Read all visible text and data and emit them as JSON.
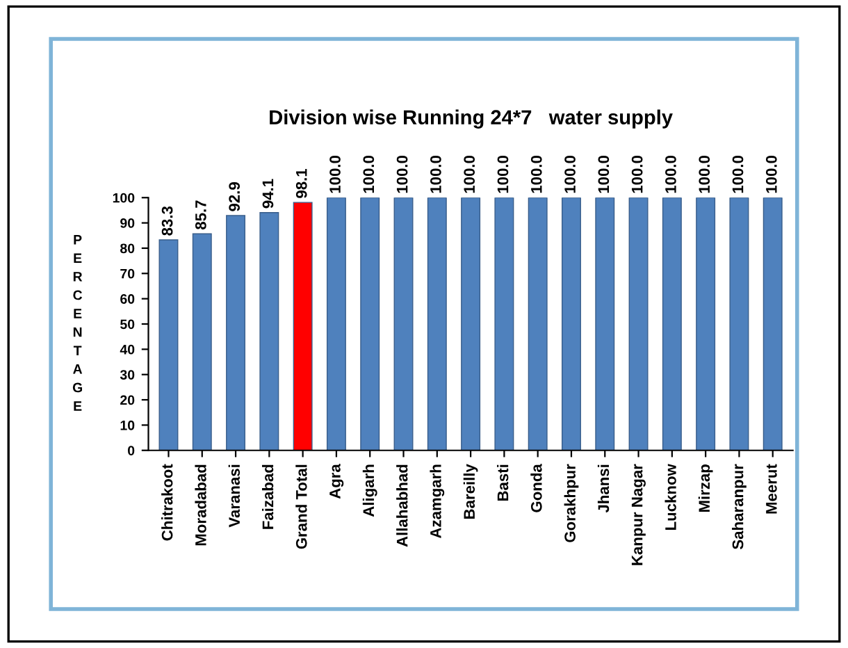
{
  "chart_data": {
    "type": "bar",
    "title": "Division wise Running 24*7   water supply",
    "ylabel": "PERCENTAGE",
    "categories": [
      "Chitrakoot",
      "Moradabad",
      "Varanasi",
      "Faizabad",
      "Grand Total",
      "Agra",
      "Aligarh",
      "Allahabhad",
      "Azamgarh",
      "Bareilly",
      "Basti",
      "Gonda",
      "Gorakhpur",
      "Jhansi",
      "Kanpur Nagar",
      "Lucknow",
      "Mirzap",
      "Saharanpur",
      "Meerut"
    ],
    "values": [
      83.3,
      85.7,
      92.9,
      94.1,
      98.1,
      100.0,
      100.0,
      100.0,
      100.0,
      100.0,
      100.0,
      100.0,
      100.0,
      100.0,
      100.0,
      100.0,
      100.0,
      100.0,
      100.0
    ],
    "value_labels": [
      "83.3",
      "85.7",
      "92.9",
      "94.1",
      "98.1",
      "100.0",
      "100.0",
      "100.0",
      "100.0",
      "100.0",
      "100.0",
      "100.0",
      "100.0",
      "100.0",
      "100.0",
      "100.0",
      "100.0",
      "100.0",
      "100.0"
    ],
    "colors": [
      "#4f81bd",
      "#4f81bd",
      "#4f81bd",
      "#4f81bd",
      "#ff0000",
      "#4f81bd",
      "#4f81bd",
      "#4f81bd",
      "#4f81bd",
      "#4f81bd",
      "#4f81bd",
      "#4f81bd",
      "#4f81bd",
      "#4f81bd",
      "#4f81bd",
      "#4f81bd",
      "#4f81bd",
      "#4f81bd",
      "#4f81bd"
    ],
    "ylim": [
      0,
      100
    ],
    "yticks": [
      0,
      10,
      20,
      30,
      40,
      50,
      60,
      70,
      80,
      90,
      100
    ],
    "grid": false,
    "legend": false
  }
}
